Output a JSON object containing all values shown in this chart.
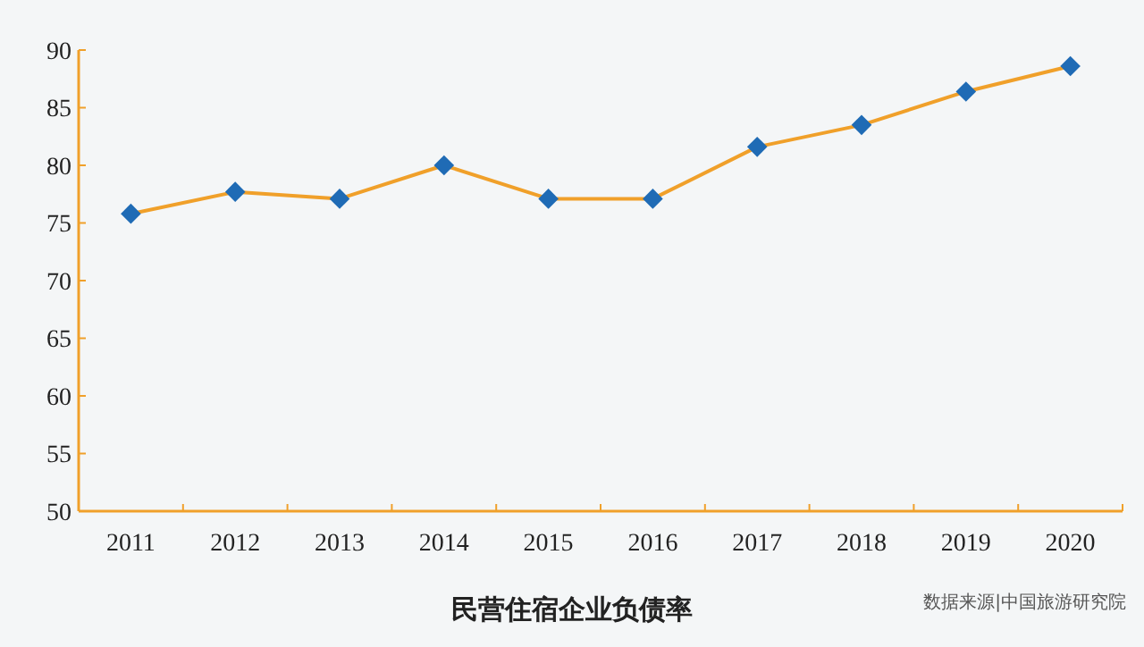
{
  "chart_data": {
    "type": "line",
    "title": "民营住宿企业负债率",
    "categories": [
      "2011",
      "2012",
      "2013",
      "2014",
      "2015",
      "2016",
      "2017",
      "2018",
      "2019",
      "2020"
    ],
    "series": [
      {
        "color": "#f0a02a",
        "values": [
          75.8,
          77.7,
          77.1,
          80,
          77.1,
          77.1,
          81.6,
          83.5,
          86.4,
          88.6
        ]
      }
    ],
    "ylim": [
      50,
      90
    ],
    "yticks": [
      50,
      55,
      60,
      65,
      70,
      75,
      80,
      85,
      90
    ],
    "grid": false,
    "marker": "diamond",
    "line_style": "solid",
    "annotations": [
      "数据来源|中国旅游研究院"
    ]
  }
}
